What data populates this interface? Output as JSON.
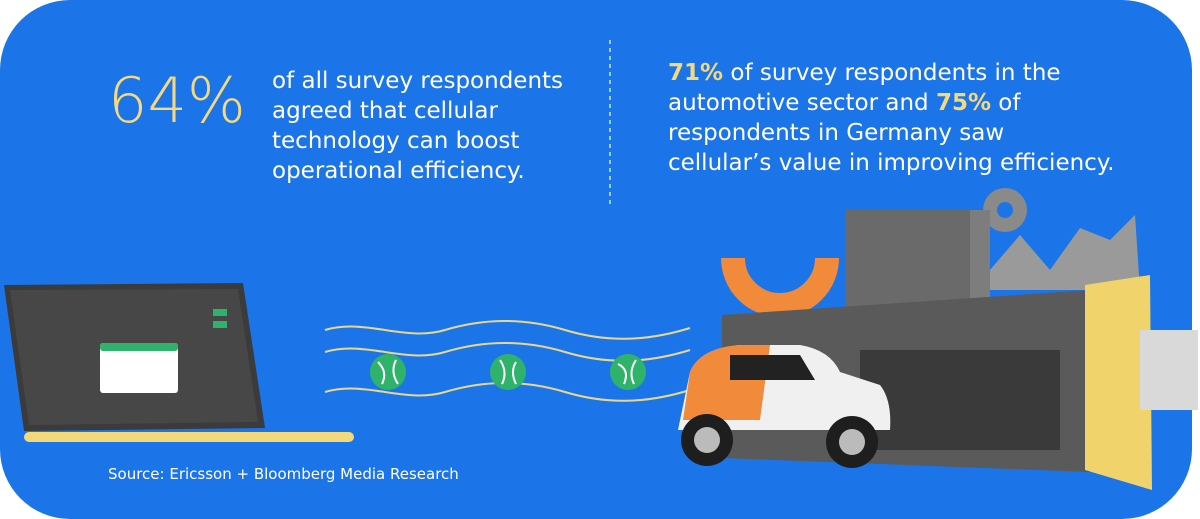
{
  "left": {
    "stat": "64%",
    "lines": [
      "of all survey respondents",
      "agreed that cellular",
      "technology can boost",
      "operational efficiency."
    ]
  },
  "right": {
    "lines": [
      [
        {
          "text": "71%",
          "highlight": true
        },
        " of survey respondents in the"
      ],
      [
        "automotive sector and ",
        {
          "text": "75%",
          "highlight": true
        },
        " of"
      ],
      [
        "respondents in Germany saw"
      ],
      [
        "cellular’s value in improving efficiency."
      ]
    ]
  },
  "source": "Source: Ericsson + Bloomberg Media Research"
}
